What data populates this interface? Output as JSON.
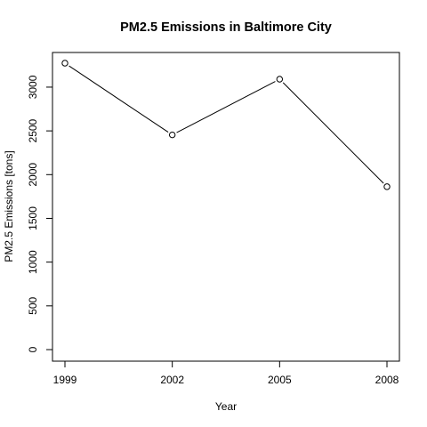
{
  "chart_data": {
    "type": "line",
    "title": "PM2.5 Emissions in Baltimore City",
    "xlabel": "Year",
    "ylabel": "PM2.5 Emissions [tons]",
    "x": [
      1999,
      2002,
      2005,
      2008
    ],
    "y": [
      3274,
      2454,
      3091,
      1862
    ],
    "xlim": [
      1999,
      2008
    ],
    "ylim": [
      0,
      3274
    ],
    "xticks": [
      1999,
      2002,
      2005,
      2008
    ],
    "yticks": [
      0,
      500,
      1000,
      1500,
      2000,
      2500,
      3000
    ],
    "markers": "open-circle",
    "grid": false,
    "legend": "none",
    "colors": {
      "line": "#000000",
      "frame": "#000000",
      "background": "#ffffff"
    }
  }
}
